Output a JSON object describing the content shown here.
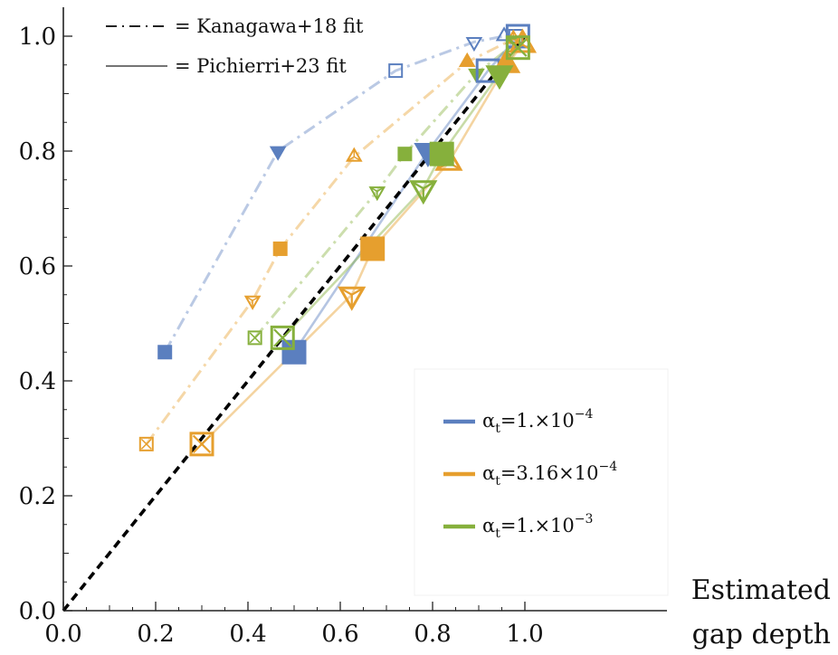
{
  "chart_data": {
    "type": "scatter",
    "xlabel_line1": "Estimated",
    "xlabel_line2": "gap depth",
    "ylabel": "",
    "xlim": [
      0.0,
      1.05
    ],
    "ylim": [
      0.0,
      1.05
    ],
    "x_ticks": [
      "0.0",
      "0.2",
      "0.4",
      "0.6",
      "0.8",
      "1.0"
    ],
    "y_ticks": [
      "0.0",
      "0.2",
      "0.4",
      "0.6",
      "0.8",
      "1.0"
    ],
    "grid": false,
    "reference_line": {
      "style": "dashed",
      "color": "#000000",
      "from": [
        0,
        0
      ],
      "to": [
        1,
        1
      ]
    },
    "notes": [
      {
        "id": "kanagawa",
        "style": "dash-dot",
        "text": "= Kanagawa+18 fit"
      },
      {
        "id": "pichierri",
        "style": "solid",
        "text": "= Pichierri+23 fit"
      }
    ],
    "legend_position": "lower-right",
    "legend": [
      {
        "prefix": "α",
        "sub": "t",
        "mid": "=1.×10",
        "sup": "−4",
        "color": "#5b7fbf"
      },
      {
        "prefix": "α",
        "sub": "t",
        "mid": "=3.16×10",
        "sup": "−4",
        "color": "#e69f2e"
      },
      {
        "prefix": "α",
        "sub": "t",
        "mid": "=1.×10",
        "sup": "−3",
        "color": "#86b03c"
      }
    ],
    "series": [
      {
        "key": "blue_kanagawa",
        "fit": "kanagawa",
        "color": "#5b7fbf",
        "points": [
          {
            "x": 0.22,
            "y": 0.45,
            "marker": "square-filled",
            "size": 1
          },
          {
            "x": 0.465,
            "y": 0.8,
            "marker": "tri-down-filled",
            "size": 1
          },
          {
            "x": 0.72,
            "y": 0.94,
            "marker": "square-open",
            "size": 1
          },
          {
            "x": 0.89,
            "y": 0.99,
            "marker": "tri-down-open",
            "size": 1
          },
          {
            "x": 0.955,
            "y": 1.0,
            "marker": "tri-up-open",
            "size": 1
          },
          {
            "x": 0.98,
            "y": 1.0,
            "marker": "square-open",
            "size": 1
          }
        ]
      },
      {
        "key": "orange_kanagawa",
        "fit": "kanagawa",
        "color": "#e69f2e",
        "points": [
          {
            "x": 0.18,
            "y": 0.29,
            "marker": "square-x",
            "size": 1
          },
          {
            "x": 0.41,
            "y": 0.54,
            "marker": "tri-down-y",
            "size": 1
          },
          {
            "x": 0.47,
            "y": 0.63,
            "marker": "square-filled",
            "size": 1
          },
          {
            "x": 0.63,
            "y": 0.79,
            "marker": "tri-up-y",
            "size": 1
          },
          {
            "x": 0.875,
            "y": 0.955,
            "marker": "tri-up-filled",
            "size": 1
          },
          {
            "x": 0.975,
            "y": 0.995,
            "marker": "tri-up-y",
            "size": 1
          }
        ]
      },
      {
        "key": "green_kanagawa",
        "fit": "kanagawa",
        "color": "#86b03c",
        "points": [
          {
            "x": 0.415,
            "y": 0.475,
            "marker": "square-x",
            "size": 1
          },
          {
            "x": 0.68,
            "y": 0.73,
            "marker": "tri-down-y",
            "size": 1
          },
          {
            "x": 0.74,
            "y": 0.795,
            "marker": "square-filled",
            "size": 1
          },
          {
            "x": 0.895,
            "y": 0.935,
            "marker": "tri-down-filled",
            "size": 1
          },
          {
            "x": 0.975,
            "y": 0.985,
            "marker": "square-x",
            "size": 1
          }
        ]
      },
      {
        "key": "blue_pichierri",
        "fit": "pichierri",
        "color": "#5b7fbf",
        "points": [
          {
            "x": 0.5,
            "y": 0.45,
            "marker": "square-filled",
            "size": 2
          },
          {
            "x": 0.79,
            "y": 0.8,
            "marker": "tri-down-filled",
            "size": 2
          },
          {
            "x": 0.92,
            "y": 0.94,
            "marker": "square-open",
            "size": 2
          },
          {
            "x": 0.985,
            "y": 1.0,
            "marker": "square-open",
            "size": 2
          }
        ]
      },
      {
        "key": "orange_pichierri",
        "fit": "pichierri",
        "color": "#e69f2e",
        "points": [
          {
            "x": 0.3,
            "y": 0.29,
            "marker": "square-x",
            "size": 2
          },
          {
            "x": 0.625,
            "y": 0.55,
            "marker": "tri-down-y",
            "size": 2
          },
          {
            "x": 0.67,
            "y": 0.63,
            "marker": "square-filled",
            "size": 2
          },
          {
            "x": 0.835,
            "y": 0.78,
            "marker": "tri-up-y",
            "size": 2
          },
          {
            "x": 0.96,
            "y": 0.95,
            "marker": "tri-up-filled",
            "size": 2
          },
          {
            "x": 0.995,
            "y": 0.985,
            "marker": "tri-up-y",
            "size": 2
          }
        ]
      },
      {
        "key": "green_pichierri",
        "fit": "pichierri",
        "color": "#86b03c",
        "points": [
          {
            "x": 0.475,
            "y": 0.475,
            "marker": "square-x",
            "size": 2
          },
          {
            "x": 0.78,
            "y": 0.735,
            "marker": "tri-down-y",
            "size": 2
          },
          {
            "x": 0.82,
            "y": 0.795,
            "marker": "square-filled",
            "size": 2
          },
          {
            "x": 0.945,
            "y": 0.935,
            "marker": "tri-down-filled",
            "size": 2
          },
          {
            "x": 0.985,
            "y": 0.98,
            "marker": "square-x",
            "size": 2
          }
        ]
      }
    ]
  }
}
